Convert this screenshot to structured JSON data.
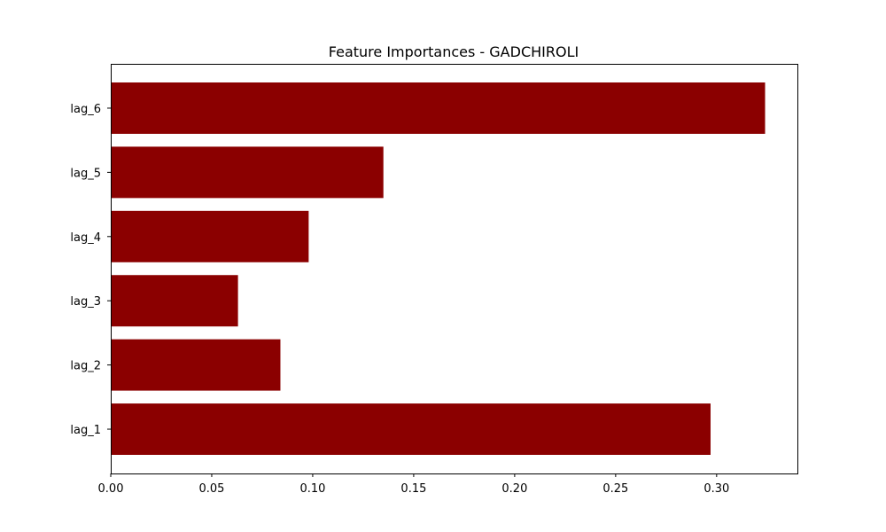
{
  "chart_data": {
    "type": "bar",
    "orientation": "horizontal",
    "title": "Feature Importances - GADCHIROLI",
    "xlabel": "",
    "ylabel": "",
    "categories": [
      "lag_1",
      "lag_2",
      "lag_3",
      "lag_4",
      "lag_5",
      "lag_6"
    ],
    "values": [
      0.297,
      0.084,
      0.063,
      0.098,
      0.135,
      0.324
    ],
    "xlim": [
      0.0,
      0.34
    ],
    "xticks": [
      0.0,
      0.05,
      0.1,
      0.15,
      0.2,
      0.25,
      0.3
    ],
    "xtick_labels": [
      "0.00",
      "0.05",
      "0.10",
      "0.15",
      "0.20",
      "0.25",
      "0.30"
    ],
    "bar_color": "#8b0000",
    "grid": false,
    "legend": false
  }
}
